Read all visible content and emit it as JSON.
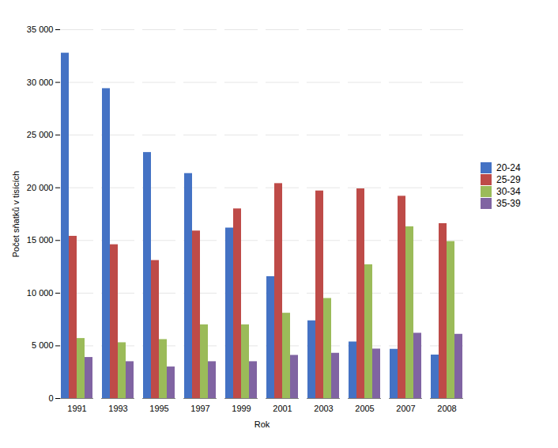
{
  "chart_data": {
    "type": "bar",
    "xlabel": "Rok",
    "ylabel": "Počet sňatků v tisících",
    "categories": [
      "1991",
      "1993",
      "1995",
      "1997",
      "1999",
      "2001",
      "2003",
      "2005",
      "2007",
      "2008"
    ],
    "series": [
      {
        "name": "20-24",
        "color": "#4472C4",
        "values": [
          32777,
          29411,
          23348,
          21352,
          16183,
          11569,
          7380,
          5372,
          4676,
          4133
        ]
      },
      {
        "name": "25-29",
        "color": "#BE4B48",
        "values": [
          15400,
          14600,
          13100,
          15900,
          18000,
          20400,
          19700,
          19900,
          19200,
          16600
        ]
      },
      {
        "name": "30-34",
        "color": "#9BBB59",
        "values": [
          5700,
          5300,
          5600,
          7000,
          7000,
          8100,
          9500,
          12700,
          16300,
          14900
        ]
      },
      {
        "name": "35-39",
        "color": "#8064A2",
        "values": [
          3900,
          3500,
          3000,
          3500,
          3500,
          4100,
          4300,
          4700,
          6200,
          6100
        ]
      }
    ],
    "ylim": [
      0,
      35000
    ],
    "yticks": [
      0,
      {
        "value": 5000,
        "label": "5 000"
      },
      {
        "value": 10000,
        "label": "10 000"
      },
      {
        "value": 15000,
        "label": "15 000"
      },
      {
        "value": 20000,
        "label": "20 000"
      },
      {
        "value": 25000,
        "label": "25 000"
      },
      {
        "value": 30000,
        "label": "30 000"
      },
      {
        "value": 35000,
        "label": "35 000"
      }
    ],
    "grid": true,
    "legend": "right"
  }
}
